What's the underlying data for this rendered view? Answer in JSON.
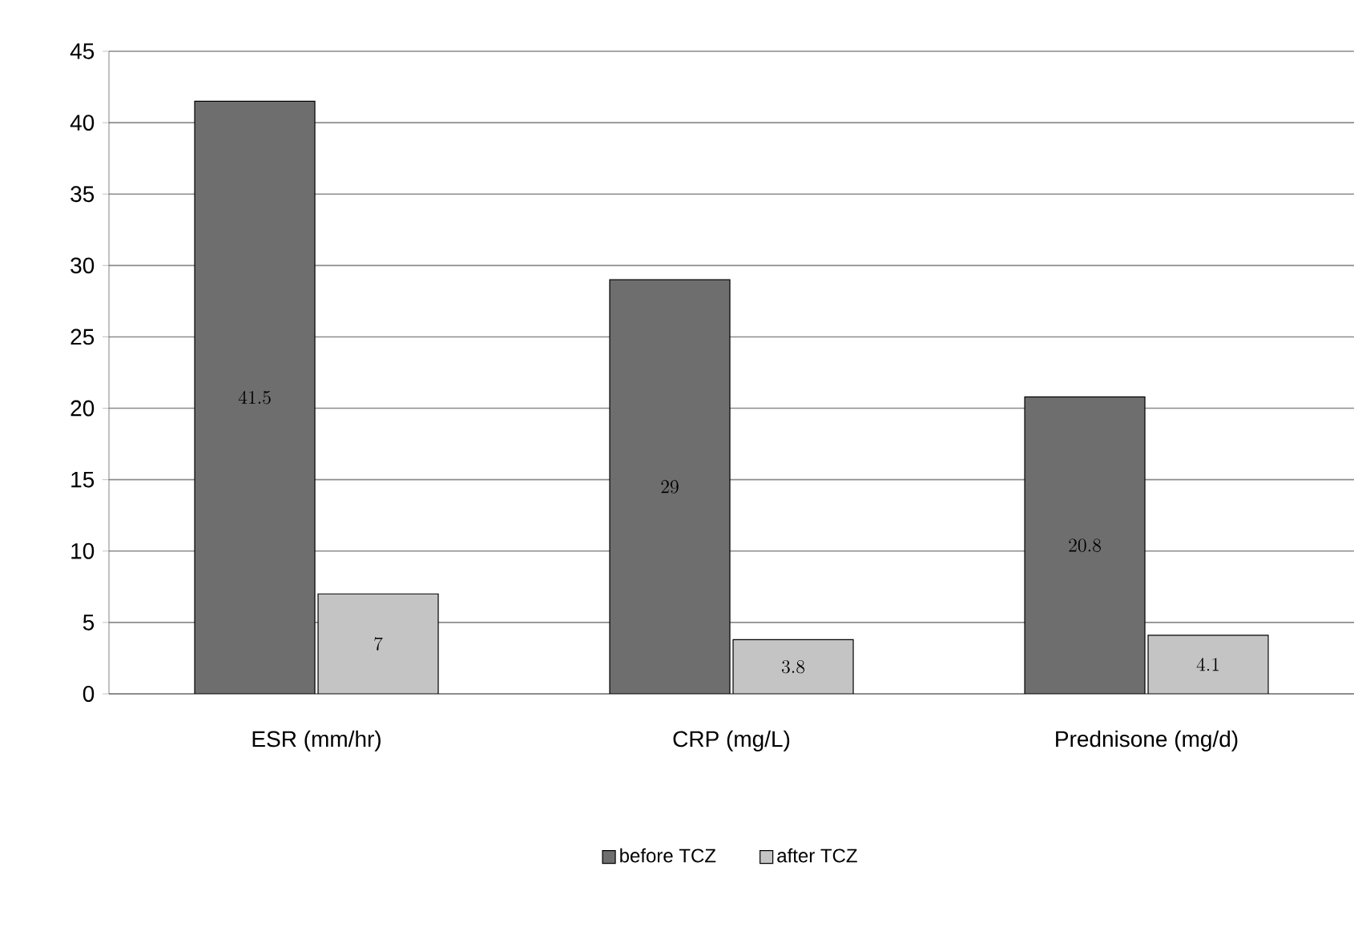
{
  "chart_data": {
    "type": "bar",
    "categories": [
      "ESR (mm/hr)",
      "CRP (mg/L)",
      "Prednisone (mg/d)"
    ],
    "series": [
      {
        "name": "before TCZ",
        "color": "#6e6e6e",
        "values": [
          41.5,
          29,
          20.8
        ]
      },
      {
        "name": "after TCZ",
        "color": "#c4c4c4",
        "values": [
          7,
          3.8,
          4.1
        ]
      }
    ],
    "ylim": [
      0,
      45
    ],
    "yticks": [
      0,
      5,
      10,
      15,
      20,
      25,
      30,
      35,
      40,
      45
    ],
    "grid": "y",
    "legend": "bottom",
    "data_labels": true
  }
}
